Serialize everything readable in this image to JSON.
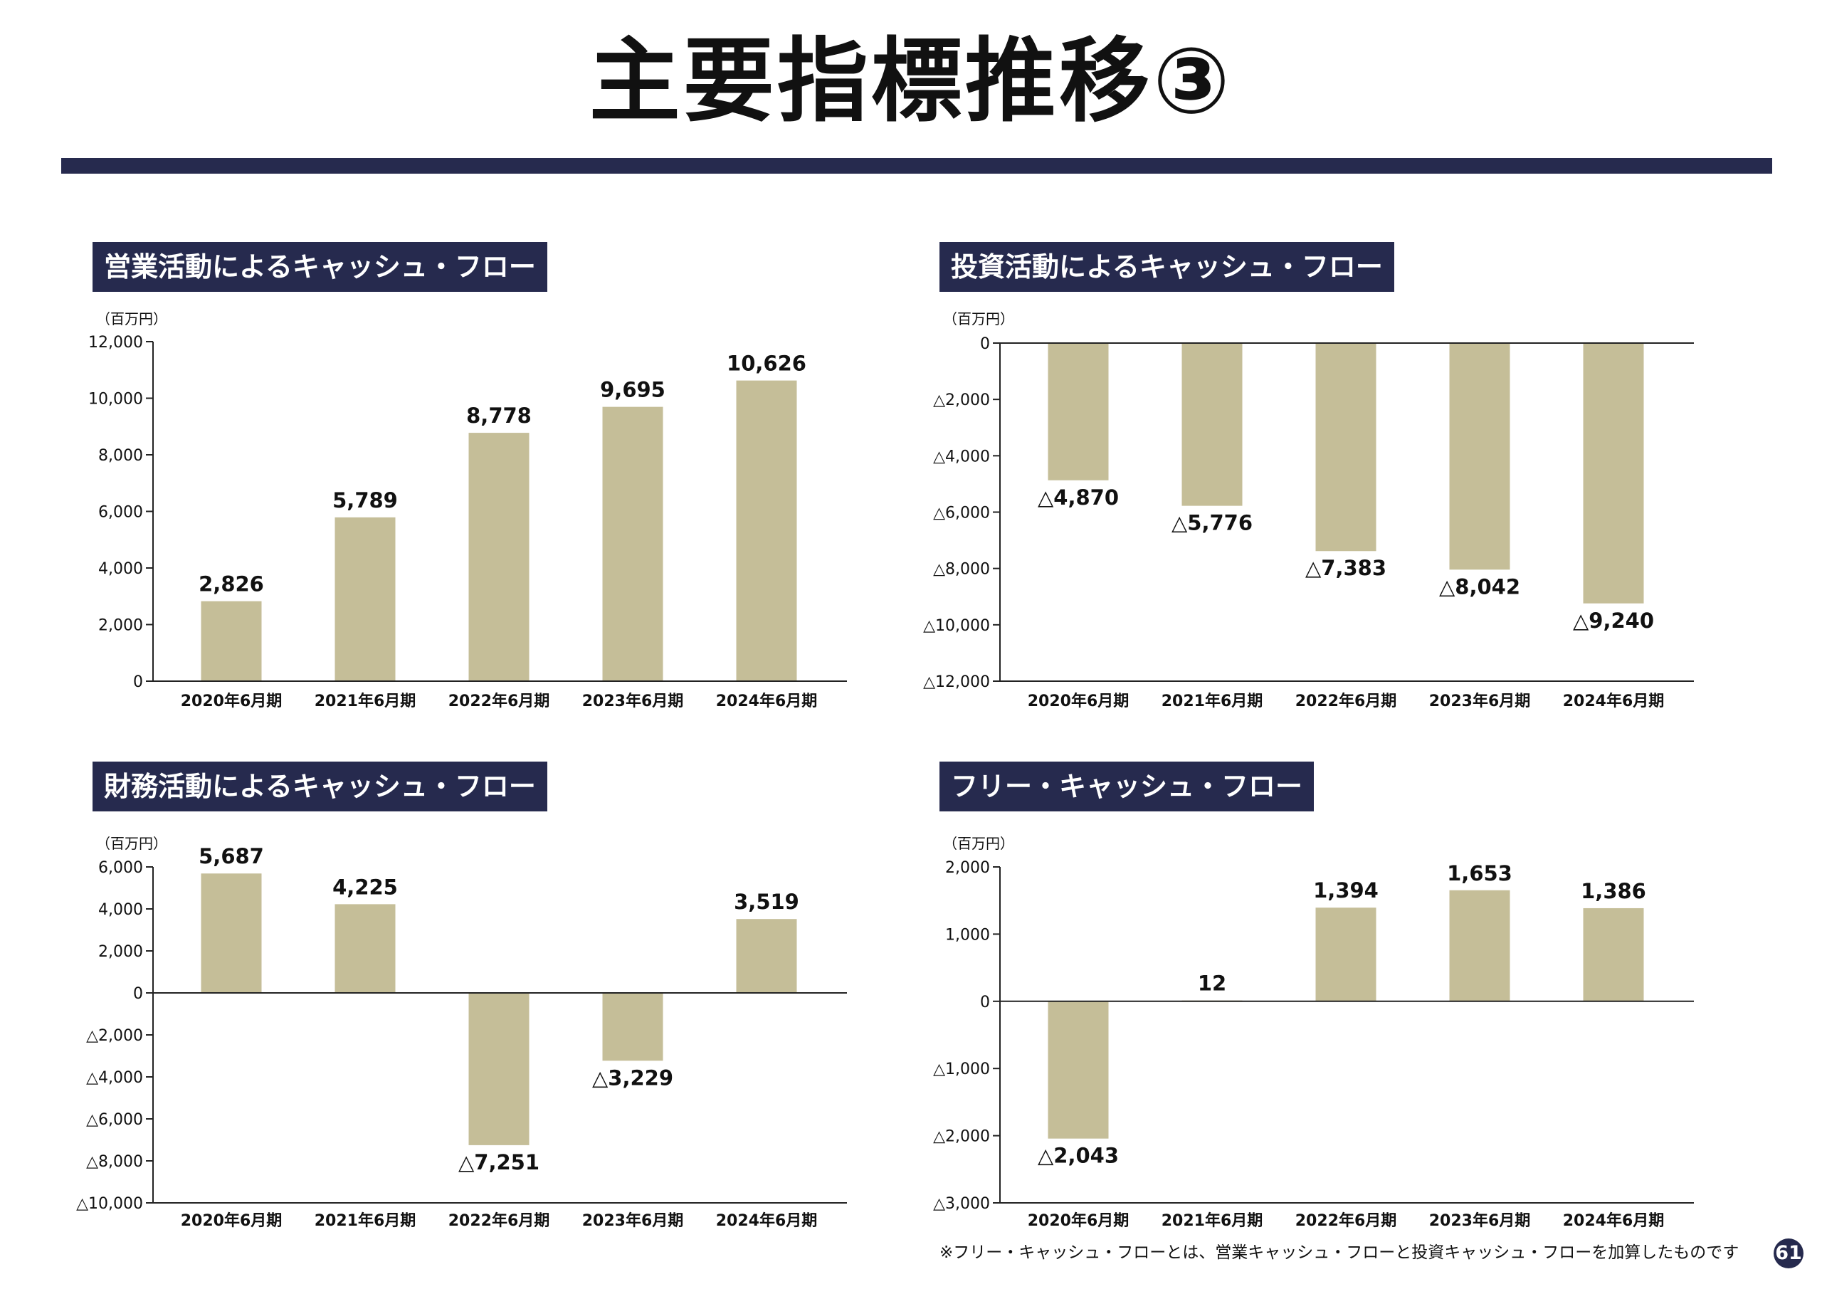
{
  "page": {
    "title": "主要指標推移③",
    "footnote": "※フリー・キャッシュ・フローとは、営業キャッシュ・フローと投資キャッシュ・フローを加算したものです",
    "page_number": "61",
    "colors": {
      "navy": "#262a4e",
      "bar": "#c5be98",
      "axis": "#222222"
    }
  },
  "chart_data": [
    {
      "type": "bar",
      "title": "営業活動によるキャッシュ・フロー",
      "unit": "（百万円）",
      "categories": [
        "2020年6月期",
        "2021年6月期",
        "2022年6月期",
        "2023年6月期",
        "2024年6月期"
      ],
      "values": [
        2826,
        5789,
        8778,
        9695,
        10626
      ],
      "value_labels": [
        "2,826",
        "5,789",
        "8,778",
        "9,695",
        "10,626"
      ],
      "ylim": [
        0,
        12000
      ],
      "yticks": [
        0,
        2000,
        4000,
        6000,
        8000,
        10000,
        12000
      ],
      "ytick_labels": [
        "0",
        "2,000",
        "4,000",
        "6,000",
        "8,000",
        "10,000",
        "12,000"
      ],
      "grid": false
    },
    {
      "type": "bar",
      "title": "投資活動によるキャッシュ・フロー",
      "unit": "（百万円）",
      "categories": [
        "2020年6月期",
        "2021年6月期",
        "2022年6月期",
        "2023年6月期",
        "2024年6月期"
      ],
      "values": [
        -4870,
        -5776,
        -7383,
        -8042,
        -9240
      ],
      "value_labels": [
        "△4,870",
        "△5,776",
        "△7,383",
        "△8,042",
        "△9,240"
      ],
      "ylim": [
        -12000,
        0
      ],
      "yticks": [
        0,
        -2000,
        -4000,
        -6000,
        -8000,
        -10000,
        -12000
      ],
      "ytick_labels": [
        "0",
        "△2,000",
        "△4,000",
        "△6,000",
        "△8,000",
        "△10,000",
        "△12,000"
      ],
      "grid": false
    },
    {
      "type": "bar",
      "title": "財務活動によるキャッシュ・フロー",
      "unit": "（百万円）",
      "categories": [
        "2020年6月期",
        "2021年6月期",
        "2022年6月期",
        "2023年6月期",
        "2024年6月期"
      ],
      "values": [
        5687,
        4225,
        -7251,
        -3229,
        3519
      ],
      "value_labels": [
        "5,687",
        "4,225",
        "△7,251",
        "△3,229",
        "3,519"
      ],
      "ylim": [
        -10000,
        6000
      ],
      "yticks": [
        6000,
        4000,
        2000,
        0,
        -2000,
        -4000,
        -6000,
        -8000,
        -10000
      ],
      "ytick_labels": [
        "6,000",
        "4,000",
        "2,000",
        "0",
        "△2,000",
        "△4,000",
        "△6,000",
        "△8,000",
        "△10,000"
      ],
      "grid": false
    },
    {
      "type": "bar",
      "title": "フリー・キャッシュ・フロー",
      "unit": "（百万円）",
      "categories": [
        "2020年6月期",
        "2021年6月期",
        "2022年6月期",
        "2023年6月期",
        "2024年6月期"
      ],
      "values": [
        -2043,
        12,
        1394,
        1653,
        1386
      ],
      "value_labels": [
        "△2,043",
        "12",
        "1,394",
        "1,653",
        "1,386"
      ],
      "ylim": [
        -3000,
        2000
      ],
      "yticks": [
        2000,
        1000,
        0,
        -1000,
        -2000,
        -3000
      ],
      "ytick_labels": [
        "2,000",
        "1,000",
        "0",
        "△1,000",
        "△2,000",
        "△3,000"
      ],
      "grid": false
    }
  ]
}
